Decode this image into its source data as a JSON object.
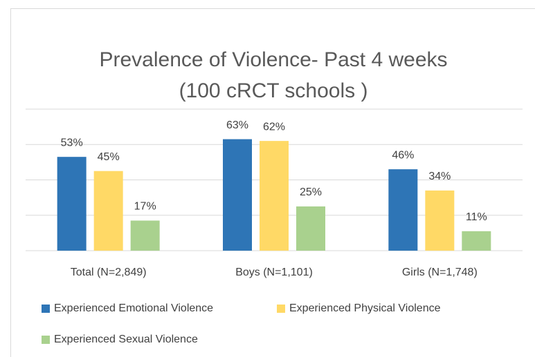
{
  "chart_data": {
    "type": "bar",
    "title": "Prevalence  of Violence- Past 4 weeks",
    "subtitle": "(100 cRCT schools )",
    "categories": [
      "Total (N=2,849)",
      "Boys (N=1,101)",
      "Girls (N=1,748)"
    ],
    "series": [
      {
        "name": "Experienced Emotional Violence",
        "color": "#2e75b6",
        "values": [
          53,
          63,
          46
        ],
        "value_labels": [
          "53%",
          "63%",
          "46%"
        ]
      },
      {
        "name": "Experienced Physical Violence",
        "color": "#ffd966",
        "values": [
          45,
          62,
          34
        ],
        "value_labels": [
          "45%",
          "62%",
          "34%"
        ]
      },
      {
        "name": "Experienced Sexual Violence",
        "color": "#a9d18e",
        "values": [
          17,
          25,
          11
        ],
        "value_labels": [
          "17%",
          "25%",
          "11%"
        ]
      }
    ],
    "ylim": [
      0,
      80
    ],
    "yticks": [
      0,
      20,
      40,
      60,
      80
    ],
    "grid": true,
    "legend": "bottom"
  }
}
